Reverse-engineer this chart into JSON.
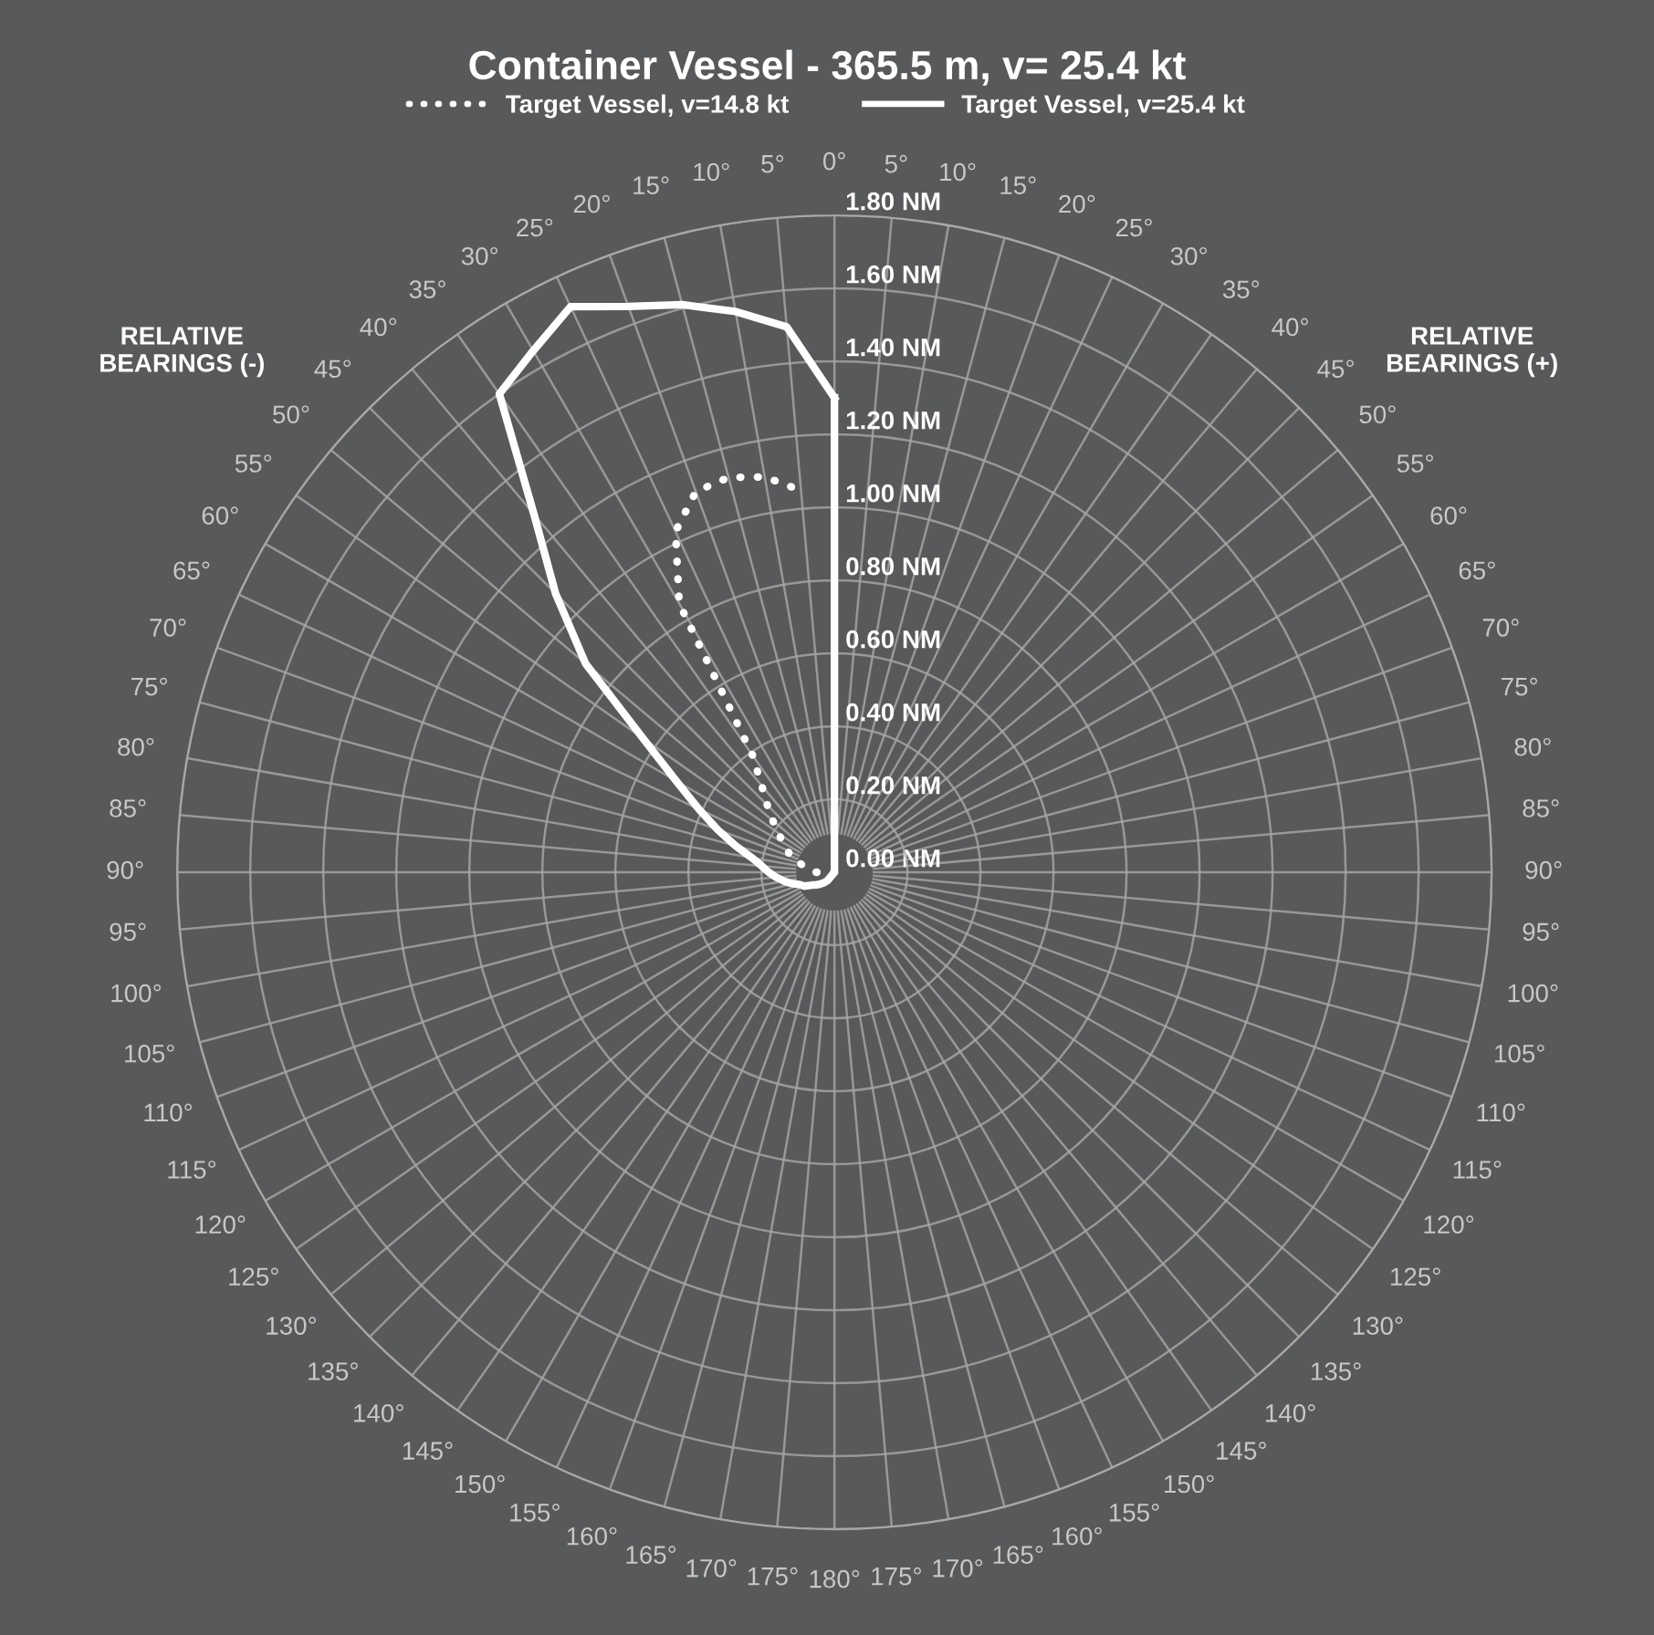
{
  "chart_data": {
    "type": "radar",
    "title": "Container Vessel - 365.5 m, v= 25.4 kt",
    "categories": [
      "0°",
      "5°",
      "10°",
      "15°",
      "20°",
      "25°",
      "30°",
      "35°",
      "40°",
      "45°",
      "50°",
      "55°",
      "60°",
      "65°",
      "70°",
      "75°",
      "80°",
      "85°",
      "90°",
      "95°",
      "100°",
      "105°",
      "110°",
      "115°",
      "120°",
      "125°",
      "130°",
      "135°",
      "140°",
      "145°",
      "150°",
      "155°",
      "160°",
      "165°",
      "170°",
      "175°",
      "180°",
      "175°",
      "170°",
      "165°",
      "160°",
      "155°",
      "150°",
      "145°",
      "140°",
      "135°",
      "130°",
      "125°",
      "120°",
      "115°",
      "110°",
      "105°",
      "100°",
      "95°",
      "90°",
      "85°",
      "80°",
      "75°",
      "70°",
      "65°",
      "60°",
      "55°",
      "50°",
      "45°",
      "40°",
      "35°",
      "30°",
      "25°",
      "20°",
      "15°",
      "10°",
      "5°"
    ],
    "series": [
      {
        "name": "Target Vessel, v=14.8 kt",
        "color": "#ffffff",
        "line_style": "dotted",
        "values": [
          null,
          0,
          0,
          0,
          0,
          0,
          0,
          0,
          0,
          0,
          0,
          0,
          0,
          0,
          0,
          0,
          0,
          0,
          0,
          0,
          0,
          0,
          0,
          0,
          0,
          0,
          0,
          0,
          0,
          0,
          0,
          0,
          0,
          0,
          0,
          0,
          0,
          0,
          0,
          0,
          0,
          0,
          0,
          0,
          0,
          0,
          0,
          0,
          0,
          0,
          0,
          0,
          0,
          0,
          0.05,
          0.06,
          0.08,
          0.1,
          0.13,
          0.14,
          0.16,
          0.19,
          0.22,
          0.26,
          0.31,
          0.39,
          0.85,
          1.03,
          1.11,
          1.12,
          1.1,
          1.05
        ]
      },
      {
        "name": "Target Vessel, v=25.4 kt",
        "color": "#ffffff",
        "line_style": "solid",
        "values": [
          1.3,
          0,
          0,
          0,
          0,
          0,
          0,
          0,
          0,
          0,
          0,
          0,
          0,
          0,
          0,
          0,
          0,
          0,
          0,
          0,
          0,
          0,
          0,
          0,
          0,
          0,
          0,
          0,
          0,
          0,
          0,
          0,
          0,
          0,
          0,
          0,
          0,
          0,
          0,
          0,
          0,
          0,
          0,
          0,
          0.03,
          0.04,
          0.05,
          0.06,
          0.07,
          0.09,
          0.1,
          0.12,
          0.14,
          0.16,
          0.18,
          0.2,
          0.23,
          0.28,
          0.34,
          0.41,
          0.5,
          0.64,
          0.89,
          1.08,
          1.28,
          1.6,
          1.65,
          1.71,
          1.65,
          1.61,
          1.56,
          1.5
        ]
      }
    ],
    "ylim": [
      0,
      1.8
    ],
    "yticks": [
      {
        "value": 0,
        "label": "0.00 NM"
      },
      {
        "value": 0.2,
        "label": "0.20 NM"
      },
      {
        "value": 0.4,
        "label": "0.40 NM"
      },
      {
        "value": 0.6,
        "label": "0.60 NM"
      },
      {
        "value": 0.8,
        "label": "0.80 NM"
      },
      {
        "value": 1.0,
        "label": "1.00 NM"
      },
      {
        "value": 1.2,
        "label": "1.20 NM"
      },
      {
        "value": 1.4,
        "label": "1.40 NM"
      },
      {
        "value": 1.6,
        "label": "1.60 NM"
      },
      {
        "value": 1.8,
        "label": "1.80 NM"
      }
    ],
    "grid": true,
    "legend": "top",
    "annotations": [
      "RELATIVE\nBEARINGS (-)",
      "RELATIVE\nBEARINGS (+)"
    ]
  }
}
